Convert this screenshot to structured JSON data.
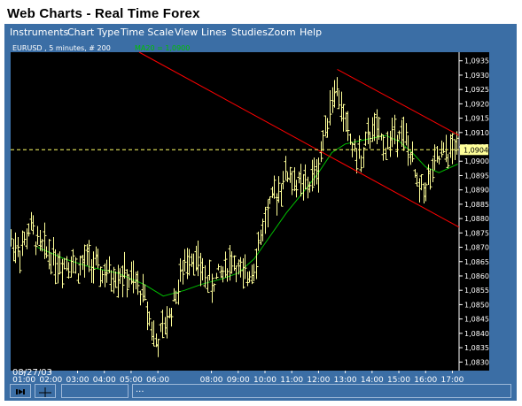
{
  "app_title": "Web Charts - Real Time Forex",
  "menu": [
    "Instruments",
    "Chart Type",
    "Time Scale",
    "View",
    "Lines",
    "Studies",
    "Zoom",
    "Help"
  ],
  "chart_header": {
    "symbol_info": "EURUSD , 5 minutes, # 200",
    "indicator_label": "MA20 = 1,0900"
  },
  "date_label": "08/27/03",
  "statusbar": {
    "field1": "",
    "field2": "..."
  },
  "colors": {
    "background": "#3b6ea5",
    "plot": "#000000",
    "price": "#ffff99",
    "ma": "#00c000",
    "trendline": "#ff0000",
    "current_price_line": "#ffff66",
    "current_price_bg": "#ffff99"
  },
  "icons": {
    "button1": "play-pause-icon",
    "button2": "crosshair-icon"
  },
  "chart_data": {
    "type": "bar",
    "series_name": "EURUSD",
    "y_ticks": [
      "1,0830",
      "1,0835",
      "1,0840",
      "1,0845",
      "1,0850",
      "1,0855",
      "1,0860",
      "1,0865",
      "1,0870",
      "1,0875",
      "1,0880",
      "1,0885",
      "1,0890",
      "1,0895",
      "1,0900",
      "1,0905",
      "1,0910",
      "1,0915",
      "1,0920",
      "1,0925",
      "1,0930",
      "1,0935"
    ],
    "ylim": [
      1.0827,
      1.0938
    ],
    "x_ticks": [
      "01:00",
      "02:00",
      "03:00",
      "04:00",
      "05:00",
      "06:00",
      "08:00",
      "09:00",
      "10:00",
      "11:00",
      "12:00",
      "13:00",
      "14:00",
      "15:00",
      "16:00",
      "17:00"
    ],
    "x_tick_hours": [
      1,
      2,
      3,
      4,
      5,
      6,
      8,
      9,
      10,
      11,
      12,
      13,
      14,
      15,
      16,
      17
    ],
    "x_range_hours": [
      0.5,
      17.25
    ],
    "current_price": "1,0904",
    "price_anchors": [
      [
        0.5,
        1.0872
      ],
      [
        0.9,
        1.0869
      ],
      [
        1.2,
        1.0877
      ],
      [
        1.6,
        1.087
      ],
      [
        2.0,
        1.0868
      ],
      [
        2.3,
        1.0864
      ],
      [
        2.7,
        1.0866
      ],
      [
        3.0,
        1.0862
      ],
      [
        3.4,
        1.0866
      ],
      [
        3.8,
        1.0861
      ],
      [
        4.2,
        1.086
      ],
      [
        4.6,
        1.0861
      ],
      [
        5.0,
        1.0858
      ],
      [
        5.4,
        1.0855
      ],
      [
        5.7,
        1.0845
      ],
      [
        5.9,
        1.0836
      ],
      [
        6.3,
        1.0843
      ],
      [
        6.7,
        1.0855
      ],
      [
        7.2,
        1.0869
      ],
      [
        7.6,
        1.0862
      ],
      [
        8.0,
        1.0857
      ],
      [
        8.4,
        1.0862
      ],
      [
        8.8,
        1.0866
      ],
      [
        9.2,
        1.0858
      ],
      [
        9.6,
        1.0865
      ],
      [
        10.0,
        1.088
      ],
      [
        10.4,
        1.0889
      ],
      [
        10.8,
        1.0896
      ],
      [
        11.2,
        1.0892
      ],
      [
        11.6,
        1.0891
      ],
      [
        12.0,
        1.0898
      ],
      [
        12.3,
        1.0915
      ],
      [
        12.6,
        1.0926
      ],
      [
        12.8,
        1.092
      ],
      [
        13.2,
        1.0906
      ],
      [
        13.6,
        1.09
      ],
      [
        14.0,
        1.0912
      ],
      [
        14.5,
        1.0905
      ],
      [
        15.0,
        1.0912
      ],
      [
        15.4,
        1.0903
      ],
      [
        15.7,
        1.089
      ],
      [
        16.1,
        1.0893
      ],
      [
        16.5,
        1.0901
      ],
      [
        16.9,
        1.0903
      ],
      [
        17.2,
        1.0905
      ]
    ],
    "ma20_anchors": [
      [
        1.5,
        1.087
      ],
      [
        2.5,
        1.0866
      ],
      [
        3.5,
        1.0863
      ],
      [
        4.5,
        1.0861
      ],
      [
        5.5,
        1.0857
      ],
      [
        6.2,
        1.0853
      ],
      [
        7.0,
        1.0855
      ],
      [
        7.6,
        1.0857
      ],
      [
        8.4,
        1.0859
      ],
      [
        9.0,
        1.0861
      ],
      [
        9.6,
        1.0866
      ],
      [
        10.2,
        1.0874
      ],
      [
        10.8,
        1.0882
      ],
      [
        11.5,
        1.089
      ],
      [
        12.0,
        1.0896
      ],
      [
        12.5,
        1.0903
      ],
      [
        13.0,
        1.0906
      ],
      [
        13.5,
        1.0907
      ],
      [
        14.0,
        1.0908
      ],
      [
        14.5,
        1.0909
      ],
      [
        15.0,
        1.0907
      ],
      [
        15.5,
        1.0903
      ],
      [
        16.0,
        1.0898
      ],
      [
        16.5,
        1.0896
      ],
      [
        17.2,
        1.0899
      ]
    ],
    "trend_channel": [
      {
        "from": [
          5.3,
          1.0938
        ],
        "to": [
          17.25,
          1.0877
        ]
      },
      {
        "from": [
          12.7,
          1.0932
        ],
        "to": [
          17.25,
          1.0909
        ]
      }
    ],
    "grid": false,
    "legend": "none"
  }
}
